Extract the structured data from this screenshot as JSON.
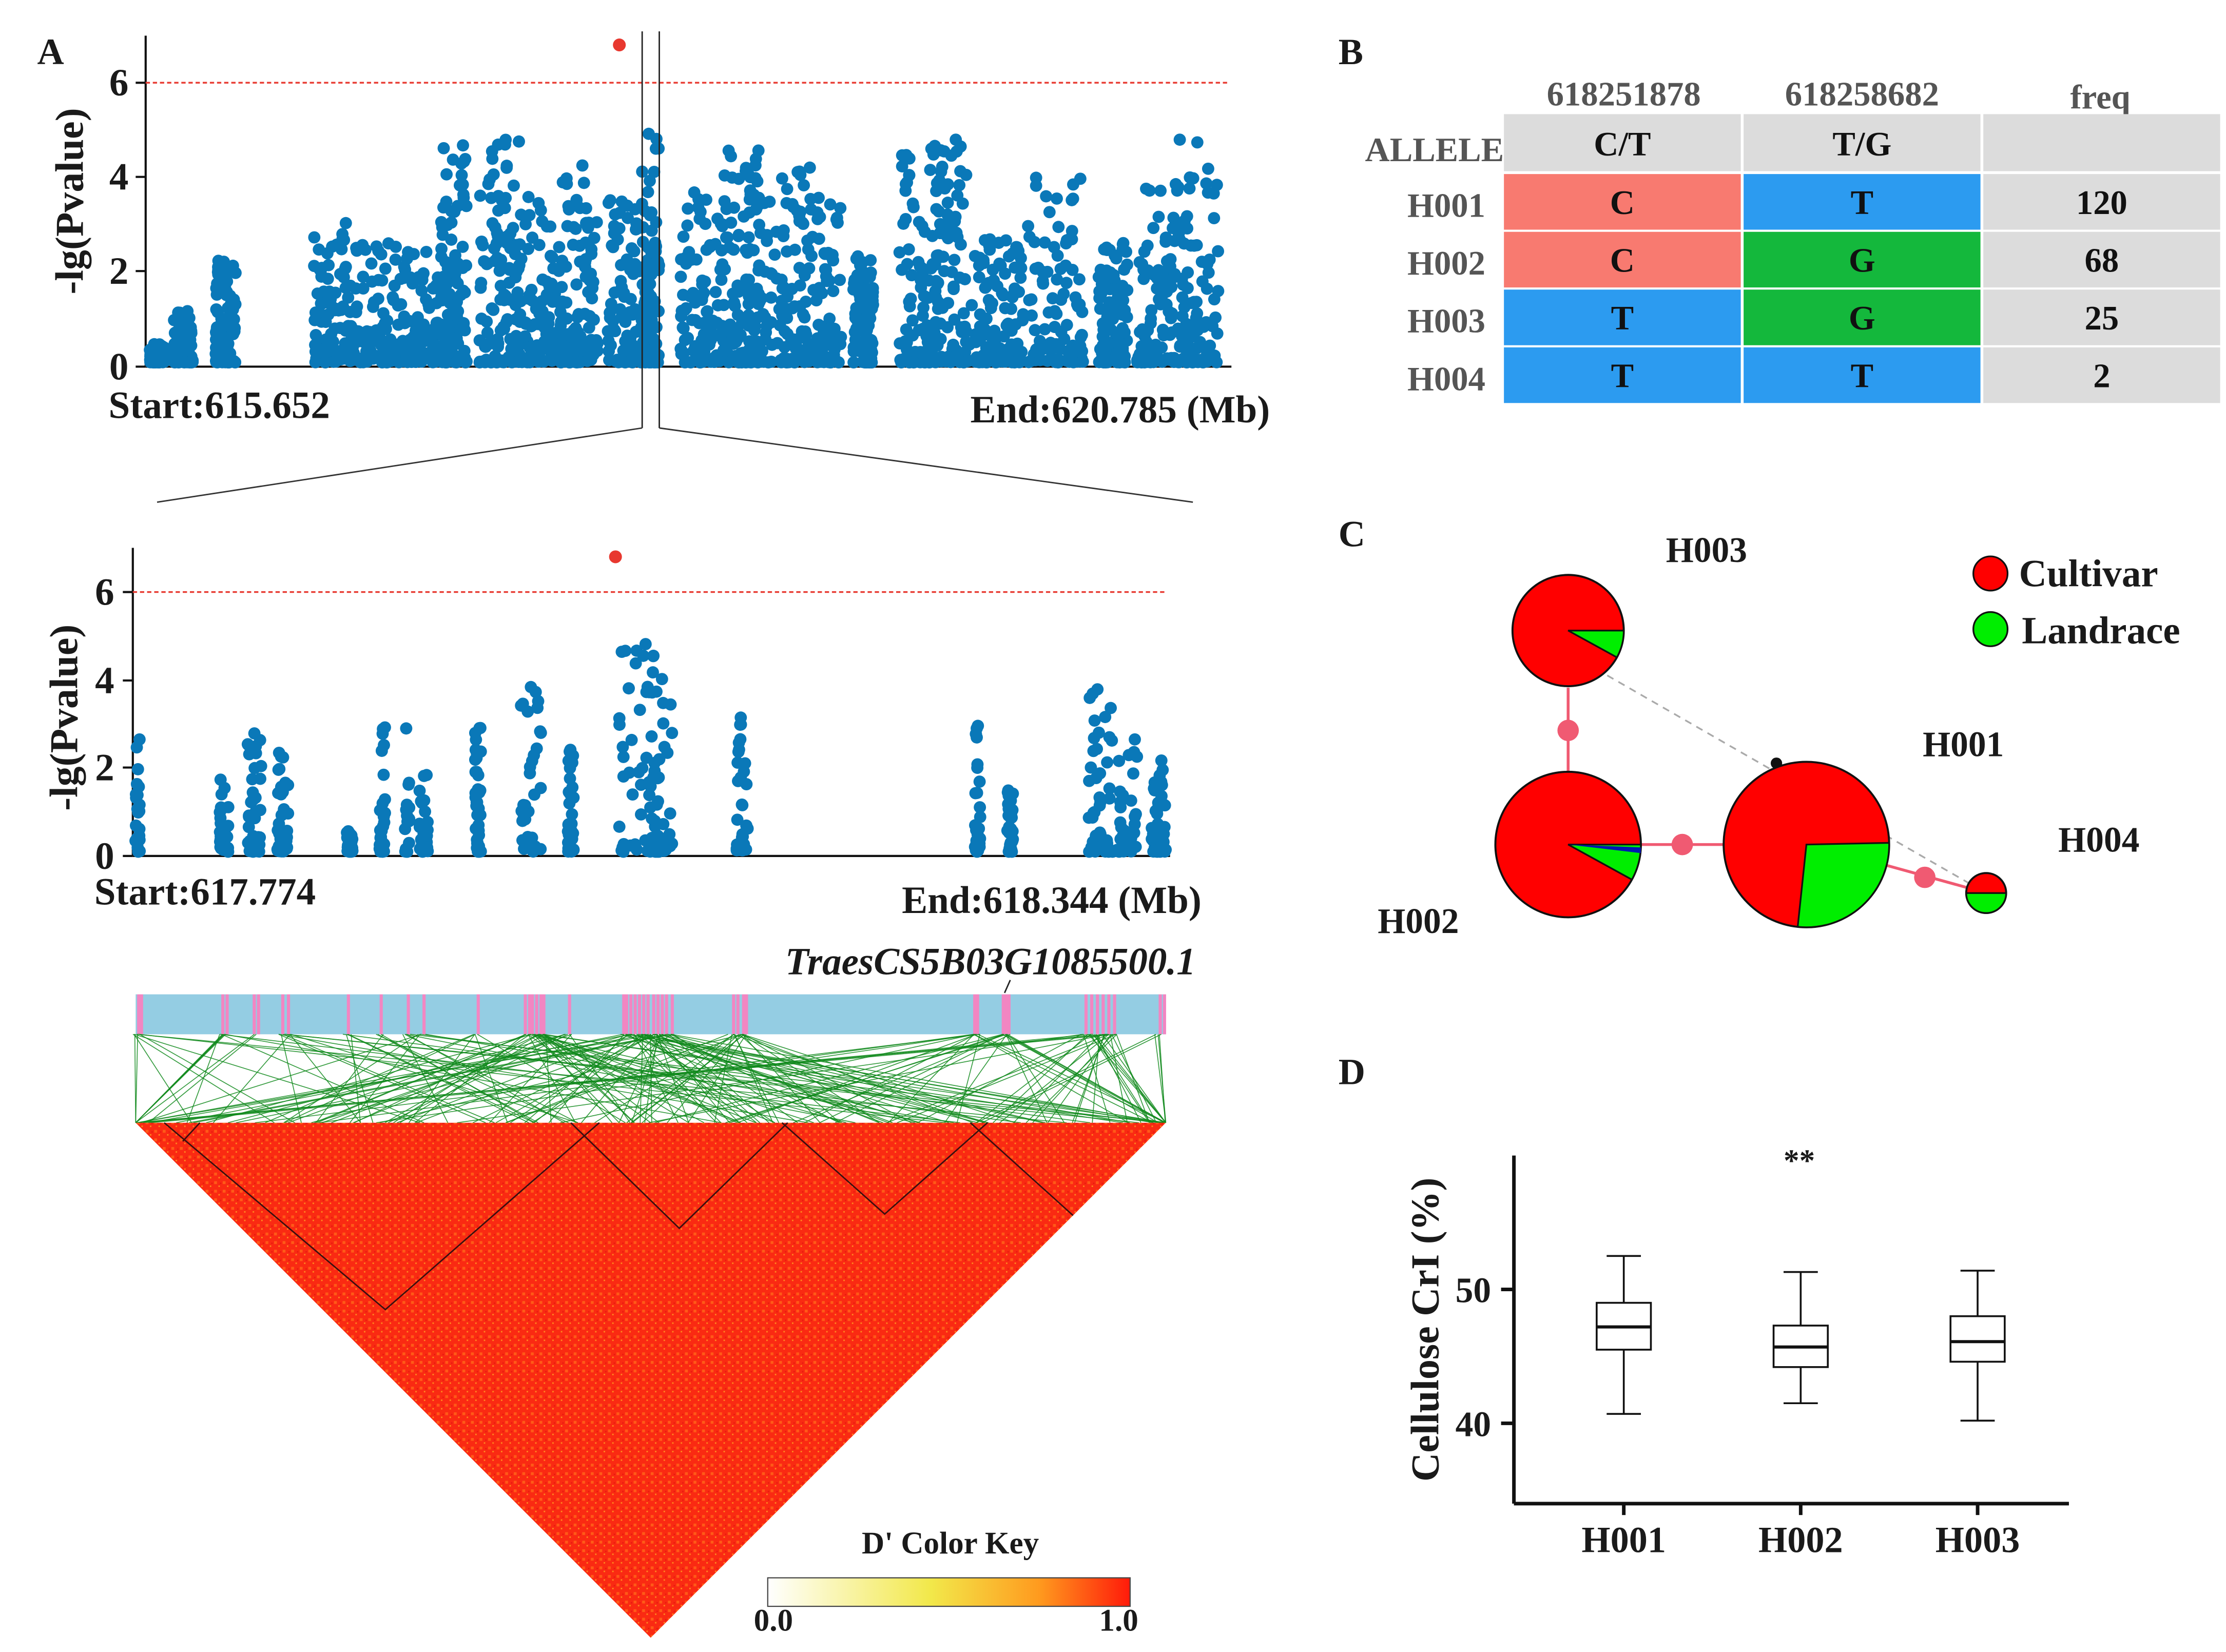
{
  "panels": {
    "a": "A",
    "b": "B",
    "c": "C",
    "d": "D"
  },
  "colors": {
    "point": "#0a78b8",
    "sig_point": "#e8382f",
    "threshold": "#e8382f",
    "allele_c": "#f87a70",
    "allele_t": "#2c9bf0",
    "allele_g": "#14b83c",
    "header_gray": "#dcdcdc",
    "gene_bar": "#94cde3",
    "gene_mark": "#f286c2",
    "ld_lines": "#118a1c",
    "cultivar": "#ff0000",
    "landrace": "#00ee00"
  },
  "manhattan_top": {
    "ylabel": "-lg(Pvalue)",
    "yticks": [
      "0",
      "2",
      "4",
      "6"
    ],
    "start": "Start:615.652",
    "end": "End:620.785 (Mb)",
    "x_min": 615.652,
    "x_max": 620.785,
    "threshold": 6,
    "top_hit": {
      "x": 617.9,
      "y": 6.8
    }
  },
  "manhattan_zoom": {
    "ylabel": "-lg(Pvalue)",
    "yticks": [
      "0",
      "2",
      "4",
      "6"
    ],
    "start": "Start:617.774",
    "end": "End:618.344 (Mb)",
    "x_min": 617.774,
    "x_max": 618.344,
    "threshold": 6,
    "top_hit": {
      "x": 618.04,
      "y": 6.8
    }
  },
  "gene_label": "TraesCS5B03G1085500.1",
  "ld": {
    "color_key_title": "D' Color Key",
    "key_min": "0.0",
    "key_max": "1.0"
  },
  "haplotype_table": {
    "allele_label": "ALLELE",
    "positions": [
      "618251878",
      "618258682"
    ],
    "freq_header": "freq",
    "alleles": [
      "C/T",
      "T/G"
    ],
    "rows": [
      {
        "name": "H001",
        "snp1": "C",
        "snp2": "T",
        "freq": "120"
      },
      {
        "name": "H002",
        "snp1": "C",
        "snp2": "G",
        "freq": "68"
      },
      {
        "name": "H003",
        "snp1": "T",
        "snp2": "G",
        "freq": "25"
      },
      {
        "name": "H004",
        "snp1": "T",
        "snp2": "T",
        "freq": "2"
      }
    ]
  },
  "network": {
    "legend": [
      {
        "label": "Cultivar",
        "color": "#ff0000"
      },
      {
        "label": "Landrace",
        "color": "#00ee00"
      }
    ],
    "nodes": [
      {
        "name": "H001",
        "landrace_fraction": 0.27
      },
      {
        "name": "H002",
        "landrace_fraction": 0.08
      },
      {
        "name": "H003",
        "landrace_fraction": 0.08
      },
      {
        "name": "H004",
        "landrace_fraction": 0.5
      }
    ]
  },
  "chart_data": {
    "type": "box",
    "title": "",
    "ylabel": "Cellulose CrI (%)",
    "categories": [
      "H001",
      "H002",
      "H003"
    ],
    "yticks": [
      "40",
      "50"
    ],
    "ylim": [
      34,
      60
    ],
    "series": [
      {
        "name": "H001",
        "min": 40.7,
        "q1": 45.5,
        "median": 47.2,
        "q3": 49.0,
        "max": 52.5
      },
      {
        "name": "H002",
        "min": 41.5,
        "q1": 44.2,
        "median": 45.7,
        "q3": 47.3,
        "max": 51.3
      },
      {
        "name": "H003",
        "min": 40.2,
        "q1": 44.6,
        "median": 46.1,
        "q3": 48.0,
        "max": 51.4
      }
    ],
    "annotation": "**"
  }
}
